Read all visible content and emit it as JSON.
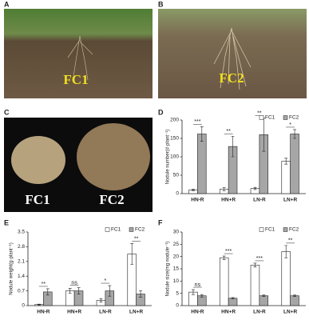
{
  "panel_labels": [
    "A",
    "B",
    "C",
    "D",
    "E",
    "F"
  ],
  "photo_labels": [
    "FC1",
    "FC2",
    "FC1",
    "FC2"
  ],
  "chart_data": [
    {
      "type": "bar",
      "ylabel": "Nodule number(#·plant⁻¹)",
      "categories": [
        "HN-R",
        "HN+R",
        "LN-R",
        "LN+R"
      ],
      "series": [
        {
          "name": "FC1",
          "color": "#ffffff",
          "values": [
            10,
            12,
            14,
            88
          ],
          "errors": [
            2,
            4,
            3,
            8
          ]
        },
        {
          "name": "FC2",
          "color": "#a6a6a6",
          "values": [
            162,
            128,
            160,
            162
          ],
          "errors": [
            20,
            28,
            45,
            12
          ]
        }
      ],
      "annotations": [
        "***",
        "**",
        "**",
        "*"
      ],
      "ylim": [
        0,
        200
      ],
      "yticks": [
        0,
        50,
        100,
        150,
        200
      ],
      "legend": "top-right"
    },
    {
      "type": "bar",
      "ylabel": "Nodule weight(g·plant⁻¹)",
      "categories": [
        "HN-R",
        "HN+R",
        "LN-R",
        "LN+R"
      ],
      "series": [
        {
          "name": "FC1",
          "color": "#ffffff",
          "values": [
            0.05,
            0.7,
            0.25,
            2.45
          ],
          "errors": [
            0.02,
            0.12,
            0.08,
            0.5
          ]
        },
        {
          "name": "FC2",
          "color": "#a6a6a6",
          "values": [
            0.65,
            0.7,
            0.7,
            0.55
          ],
          "errors": [
            0.15,
            0.15,
            0.25,
            0.15
          ]
        }
      ],
      "annotations": [
        "**",
        "ns",
        "*",
        "**"
      ],
      "ylim": [
        0,
        3.5
      ],
      "yticks": [
        0,
        0.7,
        1.4,
        2.1,
        2.8,
        3.5
      ],
      "legend": "top-right"
    },
    {
      "type": "bar",
      "ylabel": "Nodule size(mg·nodule⁻¹)",
      "categories": [
        "HN-R",
        "HN+R",
        "LN-R",
        "LN+R"
      ],
      "series": [
        {
          "name": "FC1",
          "color": "#ffffff",
          "values": [
            5.5,
            19.5,
            16.5,
            22
          ],
          "errors": [
            1,
            0.7,
            0.8,
            2.5
          ]
        },
        {
          "name": "FC2",
          "color": "#a6a6a6",
          "values": [
            4,
            3,
            4,
            4
          ],
          "errors": [
            0.5,
            0.3,
            0.3,
            0.3
          ]
        }
      ],
      "annotations": [
        "ns",
        "***",
        "***",
        "**"
      ],
      "ylim": [
        0,
        30
      ],
      "yticks": [
        0,
        5,
        10,
        15,
        20,
        25,
        30
      ],
      "legend": "top-right"
    }
  ]
}
